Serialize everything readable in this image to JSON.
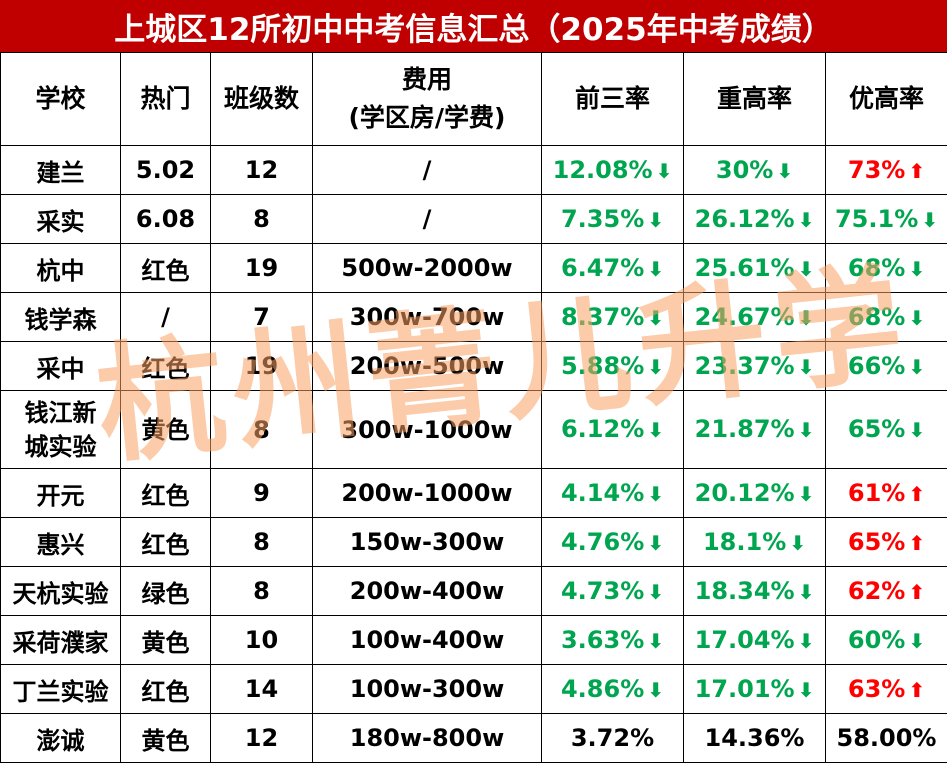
{
  "title": "上城区12所初中中考信息汇总（2025年中考成绩）",
  "watermark": "杭州菁儿升学",
  "colors": {
    "title_bg": "#c00000",
    "down": "#00a550",
    "up": "#ff0000"
  },
  "headers": {
    "school": "学校",
    "popularity": "热门",
    "classes": "班级数",
    "cost_line1": "费用",
    "cost_line2": "(学区房/学费)",
    "top3": "前三率",
    "key_hs": "重高率",
    "quality_hs": "优高率"
  },
  "rows": [
    {
      "school": "建兰",
      "popularity": "5.02",
      "classes": "12",
      "cost": "/",
      "top3": "12.08%",
      "top3_dir": "down",
      "key_hs": "30%",
      "key_hs_dir": "down",
      "quality_hs": "73%",
      "quality_hs_dir": "up"
    },
    {
      "school": "采实",
      "popularity": "6.08",
      "classes": "8",
      "cost": "/",
      "top3": "7.35%",
      "top3_dir": "down",
      "key_hs": "26.12%",
      "key_hs_dir": "down",
      "quality_hs": "75.1%",
      "quality_hs_dir": "down"
    },
    {
      "school": "杭中",
      "popularity": "红色",
      "classes": "19",
      "cost": "500w-2000w",
      "top3": "6.47%",
      "top3_dir": "down",
      "key_hs": "25.61%",
      "key_hs_dir": "down",
      "quality_hs": "68%",
      "quality_hs_dir": "down"
    },
    {
      "school": "钱学森",
      "popularity": "/",
      "classes": "7",
      "cost": "300w-700w",
      "top3": "8.37%",
      "top3_dir": "down",
      "key_hs": "24.67%",
      "key_hs_dir": "down",
      "quality_hs": "68%",
      "quality_hs_dir": "down"
    },
    {
      "school": "采中",
      "popularity": "红色",
      "classes": "19",
      "cost": "200w-500w",
      "top3": "5.88%",
      "top3_dir": "down",
      "key_hs": "23.37%",
      "key_hs_dir": "down",
      "quality_hs": "66%",
      "quality_hs_dir": "down"
    },
    {
      "school_line1": "钱江新",
      "school_line2": "城实验",
      "popularity": "黄色",
      "classes": "8",
      "cost": "300w-1000w",
      "top3": "6.12%",
      "top3_dir": "down",
      "key_hs": "21.87%",
      "key_hs_dir": "down",
      "quality_hs": "65%",
      "quality_hs_dir": "down"
    },
    {
      "school": "开元",
      "popularity": "红色",
      "classes": "9",
      "cost": "200w-1000w",
      "top3": "4.14%",
      "top3_dir": "down",
      "key_hs": "20.12%",
      "key_hs_dir": "down",
      "quality_hs": "61%",
      "quality_hs_dir": "up"
    },
    {
      "school": "惠兴",
      "popularity": "红色",
      "classes": "8",
      "cost": "150w-300w",
      "top3": "4.76%",
      "top3_dir": "down",
      "key_hs": "18.1%",
      "key_hs_dir": "down",
      "quality_hs": "65%",
      "quality_hs_dir": "up"
    },
    {
      "school": "天杭实验",
      "popularity": "绿色",
      "classes": "8",
      "cost": "200w-400w",
      "top3": "4.73%",
      "top3_dir": "down",
      "key_hs": "18.34%",
      "key_hs_dir": "down",
      "quality_hs": "62%",
      "quality_hs_dir": "up"
    },
    {
      "school": "采荷濮家",
      "popularity": "黄色",
      "classes": "10",
      "cost": "100w-400w",
      "top3": "3.63%",
      "top3_dir": "down",
      "key_hs": "17.04%",
      "key_hs_dir": "down",
      "quality_hs": "60%",
      "quality_hs_dir": "down"
    },
    {
      "school": "丁兰实验",
      "popularity": "红色",
      "classes": "14",
      "cost": "100w-300w",
      "top3": "4.86%",
      "top3_dir": "down",
      "key_hs": "17.01%",
      "key_hs_dir": "down",
      "quality_hs": "63%",
      "quality_hs_dir": "up"
    },
    {
      "school": "澎诚",
      "popularity": "黄色",
      "classes": "12",
      "cost": "180w-800w",
      "top3": "3.72%",
      "key_hs": "14.36%",
      "quality_hs": "58.00%"
    }
  ]
}
